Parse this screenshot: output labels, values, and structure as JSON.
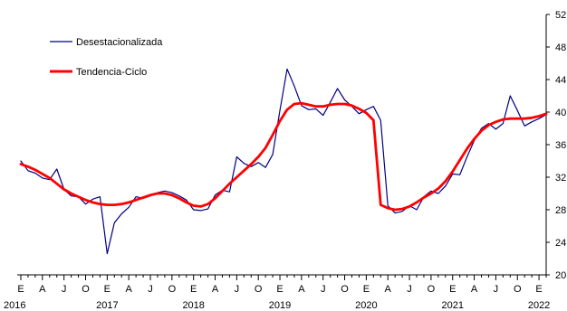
{
  "chart_data": {
    "type": "line",
    "title": "",
    "xlabel": "",
    "ylabel": "",
    "ylim": [
      20,
      52
    ],
    "yticks": [
      20,
      24,
      28,
      32,
      36,
      40,
      44,
      48,
      52
    ],
    "y_axis_side": "right",
    "grid": false,
    "legend_position": "top-left",
    "quarter_letters": [
      "E",
      "A",
      "J",
      "O"
    ],
    "years": [
      "2016",
      "2017",
      "2018",
      "2019",
      "2020",
      "2021",
      "2022"
    ],
    "series": [
      {
        "name": "Desestacionalizada",
        "color": "#000080",
        "values": [
          34.0,
          32.8,
          32.5,
          31.9,
          31.7,
          33.0,
          30.5,
          29.7,
          29.6,
          28.7,
          29.3,
          29.6,
          22.6,
          26.4,
          27.5,
          28.3,
          29.6,
          29.4,
          29.7,
          30.1,
          30.3,
          30.1,
          29.7,
          29.2,
          28.0,
          27.9,
          28.1,
          29.8,
          30.4,
          30.2,
          34.5,
          33.7,
          33.3,
          33.8,
          33.2,
          34.8,
          40.2,
          45.3,
          43.2,
          40.8,
          40.3,
          40.4,
          39.6,
          41.2,
          42.9,
          41.5,
          40.7,
          39.8,
          40.3,
          40.7,
          39.0,
          28.5,
          27.6,
          27.8,
          28.5,
          28.0,
          29.6,
          30.3,
          30.0,
          30.9,
          32.4,
          32.3,
          34.5,
          36.5,
          38.0,
          38.6,
          37.9,
          38.6,
          42.0,
          40.2,
          38.3,
          38.8,
          39.2,
          39.7
        ],
        "start": "2016-01"
      },
      {
        "name": "Tendencia-Ciclo",
        "color": "#ff0000",
        "values": [
          33.6,
          33.3,
          32.9,
          32.4,
          31.9,
          31.2,
          30.5,
          30.0,
          29.6,
          29.2,
          28.9,
          28.7,
          28.6,
          28.6,
          28.7,
          28.9,
          29.2,
          29.5,
          29.8,
          30.0,
          30.0,
          29.8,
          29.4,
          28.9,
          28.5,
          28.4,
          28.7,
          29.4,
          30.3,
          31.2,
          32.0,
          32.8,
          33.6,
          34.5,
          35.6,
          37.2,
          38.9,
          40.3,
          41.0,
          41.1,
          40.9,
          40.7,
          40.7,
          40.9,
          41.0,
          41.0,
          40.8,
          40.4,
          39.9,
          39.0,
          28.6,
          28.2,
          28.0,
          28.1,
          28.4,
          28.9,
          29.5,
          30.0,
          30.6,
          31.5,
          32.7,
          34.1,
          35.5,
          36.7,
          37.7,
          38.4,
          38.8,
          39.1,
          39.2,
          39.2,
          39.2,
          39.3,
          39.5,
          39.8
        ],
        "start": "2016-01"
      }
    ]
  }
}
